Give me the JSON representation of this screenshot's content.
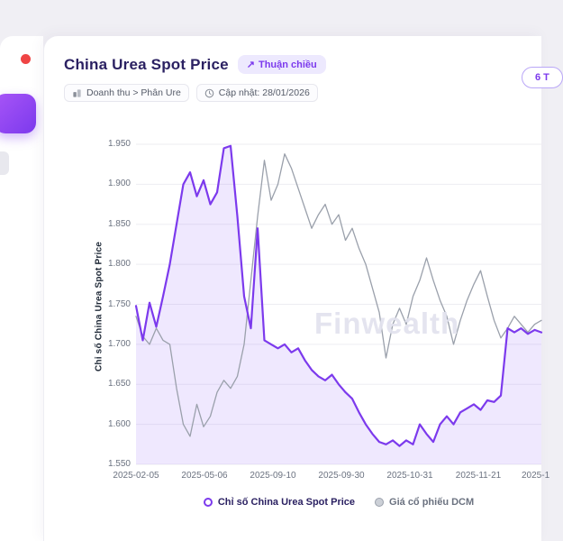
{
  "theme": {
    "accent": "#7c3aed",
    "accent_soft": "#ede9fe",
    "danger": "#ef4444",
    "grey_line": "#9aa0ab"
  },
  "header": {
    "title": "China Urea Spot Price",
    "trend_badge": {
      "icon": "↗",
      "label": "Thuận chiều"
    },
    "breadcrumb": "Doanh thu > Phân Ure",
    "updated": "Cập nhật: 28/01/2026",
    "range_pill": "6 T"
  },
  "chart_data": {
    "type": "line",
    "title": "",
    "xlabel": "",
    "ylabel": "Chỉ số China Urea Spot Price",
    "ylim": [
      1.55,
      1.95
    ],
    "grid": "horizontal",
    "watermark": "Finwealth",
    "y_ticks": [
      "1.950",
      "1.900",
      "1.850",
      "1.800",
      "1.750",
      "1.700",
      "1.650",
      "1.600",
      "1.550"
    ],
    "x_tick_labels": [
      "2025-02-05",
      "2025-05-06",
      "2025-09-10",
      "2025-09-30",
      "2025-10-31",
      "2025-11-21",
      "2025-1"
    ],
    "series": [
      {
        "name": "Chỉ số China Urea Spot Price",
        "color": "#7c3aed",
        "fill": "rgba(139,92,246,0.14)",
        "values": [
          1.748,
          1.705,
          1.752,
          1.722,
          1.76,
          1.8,
          1.85,
          1.9,
          1.915,
          1.885,
          1.905,
          1.875,
          1.89,
          1.945,
          1.948,
          1.86,
          1.76,
          1.72,
          1.845,
          1.705,
          1.7,
          1.695,
          1.7,
          1.69,
          1.695,
          1.68,
          1.668,
          1.66,
          1.655,
          1.662,
          1.65,
          1.64,
          1.632,
          1.615,
          1.6,
          1.588,
          1.578,
          1.575,
          1.58,
          1.573,
          1.58,
          1.575,
          1.6,
          1.588,
          1.578,
          1.6,
          1.61,
          1.6,
          1.615,
          1.62,
          1.625,
          1.618,
          1.63,
          1.628,
          1.636,
          1.72,
          1.715,
          1.72,
          1.713,
          1.718,
          1.715
        ]
      },
      {
        "name": "Giá cổ phiếu DCM",
        "color": "#9aa0ab",
        "fill": null,
        "values": [
          1.735,
          1.71,
          1.7,
          1.72,
          1.705,
          1.7,
          1.645,
          1.6,
          1.585,
          1.625,
          1.597,
          1.61,
          1.64,
          1.655,
          1.645,
          1.66,
          1.7,
          1.78,
          1.86,
          1.93,
          1.88,
          1.9,
          1.938,
          1.92,
          1.895,
          1.87,
          1.845,
          1.862,
          1.875,
          1.85,
          1.862,
          1.83,
          1.845,
          1.82,
          1.8,
          1.77,
          1.74,
          1.683,
          1.725,
          1.745,
          1.725,
          1.76,
          1.78,
          1.808,
          1.78,
          1.755,
          1.735,
          1.7,
          1.73,
          1.755,
          1.775,
          1.792,
          1.76,
          1.73,
          1.708,
          1.72,
          1.735,
          1.725,
          1.715,
          1.725,
          1.73
        ]
      }
    ],
    "legend": [
      {
        "label": "Chỉ số China Urea Spot Price",
        "swatch_type": "ring",
        "swatch_color": "#7c3aed",
        "swatch_border": "#7c3aed",
        "label_color": "#2b2162"
      },
      {
        "label": "Giá cổ phiếu DCM",
        "swatch_type": "dot",
        "swatch_color": "#ccd0d7",
        "swatch_border": "#9aa0ab",
        "label_color": "#6b7280"
      }
    ],
    "legend_position": "bottom-center"
  }
}
